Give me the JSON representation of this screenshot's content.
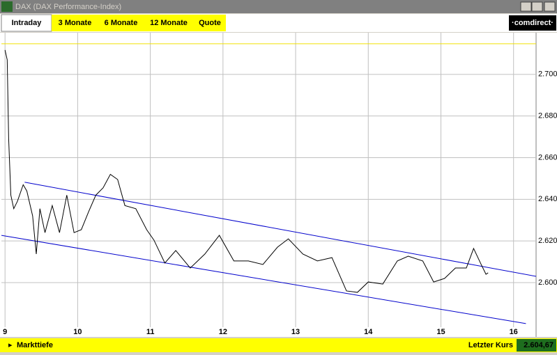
{
  "window": {
    "title": "DAX (DAX Performance-Index)",
    "tabs": [
      "Intraday",
      "3 Monate",
      "6 Monate",
      "12 Monate",
      "Quote"
    ],
    "brand": "·comdirect·",
    "footer_left": "Markttiefe",
    "footer_label": "Letzter Kurs",
    "footer_value": "2.604,67"
  },
  "chart_data": {
    "type": "line",
    "x": [
      9.0,
      9.03,
      9.05,
      9.08,
      9.12,
      9.17,
      9.25,
      9.3,
      9.38,
      9.43,
      9.48,
      9.55,
      9.65,
      9.75,
      9.85,
      9.95,
      10.05,
      10.15,
      10.25,
      10.35,
      10.45,
      10.55,
      10.65,
      10.8,
      10.95,
      11.05,
      11.2,
      11.35,
      11.55,
      11.75,
      11.95,
      12.15,
      12.35,
      12.55,
      12.75,
      12.9,
      13.1,
      13.3,
      13.5,
      13.7,
      13.85,
      14.0,
      14.2,
      14.4,
      14.55,
      14.75,
      14.9,
      15.05,
      15.2,
      15.35,
      15.45,
      15.55,
      15.62,
      15.65
    ],
    "series": [
      {
        "color": "#000000",
        "values": [
          2711.7,
          2707,
          2669,
          2642,
          2635.5,
          2639,
          2647,
          2644,
          2632,
          2613.7,
          2635.5,
          2624,
          2637,
          2624,
          2642,
          2624,
          2625.4,
          2634,
          2642,
          2645.5,
          2652,
          2649.5,
          2637,
          2635.5,
          2625.4,
          2620.4,
          2609.4,
          2615.4,
          2607,
          2613.7,
          2622.7,
          2610.4,
          2610.4,
          2608.7,
          2617,
          2621,
          2613.7,
          2610.4,
          2612,
          2596,
          2595.3,
          2600.3,
          2599.3,
          2610.4,
          2612.7,
          2610.4,
          2600.3,
          2602,
          2607,
          2607,
          2616.4,
          2609,
          2604,
          2604.7
        ]
      }
    ],
    "trendlines": [
      {
        "color": "#0000cc",
        "x": [
          9.27,
          16.31
        ],
        "y": [
          2648.2,
          2603
        ]
      },
      {
        "color": "#0000cc",
        "x": [
          8.95,
          16.17
        ],
        "y": [
          2622.7,
          2580.3
        ]
      }
    ],
    "reference_line": {
      "color": "#f0e000",
      "value": 2714.7
    },
    "xlim": [
      8.95,
      16.31
    ],
    "xticks": [
      9,
      10,
      11,
      12,
      13,
      14,
      15,
      16
    ],
    "ylim": [
      2578.6,
      2719
    ],
    "yticks": [
      {
        "value": 2600,
        "label": "2.600"
      },
      {
        "value": 2620,
        "label": "2.620"
      },
      {
        "value": 2640,
        "label": "2.640"
      },
      {
        "value": 2660,
        "label": "2.660"
      },
      {
        "value": 2680,
        "label": "2.680"
      },
      {
        "value": 2700,
        "label": "2.700"
      }
    ],
    "grid": true
  }
}
